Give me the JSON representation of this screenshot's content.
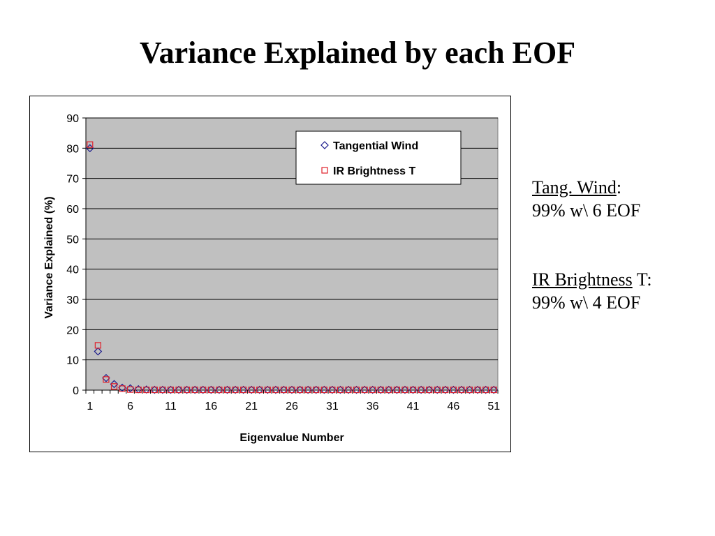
{
  "slide": {
    "title": "Variance Explained by each EOF"
  },
  "notes": [
    {
      "label": "Tang. Wind",
      "suffix": ":",
      "value": "99%  w\\ 6 EOF"
    },
    {
      "label": "IR Brightness",
      "suffix": " T:",
      "value": "99%  w\\ 4 EOF"
    }
  ],
  "chart_data": {
    "type": "scatter",
    "title": "",
    "xlabel": "Eigenvalue Number",
    "ylabel": "Variance Explained (%)",
    "xlim": [
      1,
      51
    ],
    "ylim": [
      0,
      90
    ],
    "yticks": [
      0,
      10,
      20,
      30,
      40,
      50,
      60,
      70,
      80,
      90
    ],
    "xtick_labels": [
      1,
      6,
      11,
      16,
      21,
      26,
      31,
      36,
      41,
      46,
      51
    ],
    "grid": "horizontal",
    "plot_background": "#c0c0c0",
    "legend": "top-right",
    "series": [
      {
        "name": "Tangential Wind",
        "marker": "diamond",
        "color": "#1a1a8c",
        "values": [
          80,
          12.8,
          4,
          2,
          0.8,
          0.6,
          0.3,
          0.2,
          0.1,
          0.1,
          0.1,
          0.1,
          0.1,
          0.1,
          0.1,
          0.1,
          0.1,
          0.1,
          0.1,
          0.1,
          0.1,
          0.1,
          0.1,
          0.1,
          0.1,
          0.1,
          0.1,
          0.1,
          0.1,
          0.1,
          0.1,
          0.1,
          0.1,
          0.1,
          0.1,
          0.1,
          0.1,
          0.1,
          0.1,
          0.1,
          0.1,
          0.1,
          0.1,
          0.1,
          0.1,
          0.1,
          0.1,
          0.1,
          0.1,
          0.1,
          0.1
        ]
      },
      {
        "name": "IR Brightness T",
        "marker": "square",
        "color": "#e0202a",
        "values": [
          81.2,
          14.8,
          3.5,
          1.2,
          0.5,
          0.2,
          0.1,
          0.1,
          0.1,
          0.1,
          0.1,
          0.1,
          0.1,
          0.1,
          0.1,
          0.1,
          0.1,
          0.1,
          0.1,
          0.1,
          0.1,
          0.1,
          0.1,
          0.1,
          0.1,
          0.1,
          0.1,
          0.1,
          0.1,
          0.1,
          0.1,
          0.1,
          0.1,
          0.1,
          0.1,
          0.1,
          0.1,
          0.1,
          0.1,
          0.1,
          0.1,
          0.1,
          0.1,
          0.1,
          0.1,
          0.1,
          0.1,
          0.1,
          0.1,
          0.1,
          0.1
        ]
      }
    ]
  }
}
